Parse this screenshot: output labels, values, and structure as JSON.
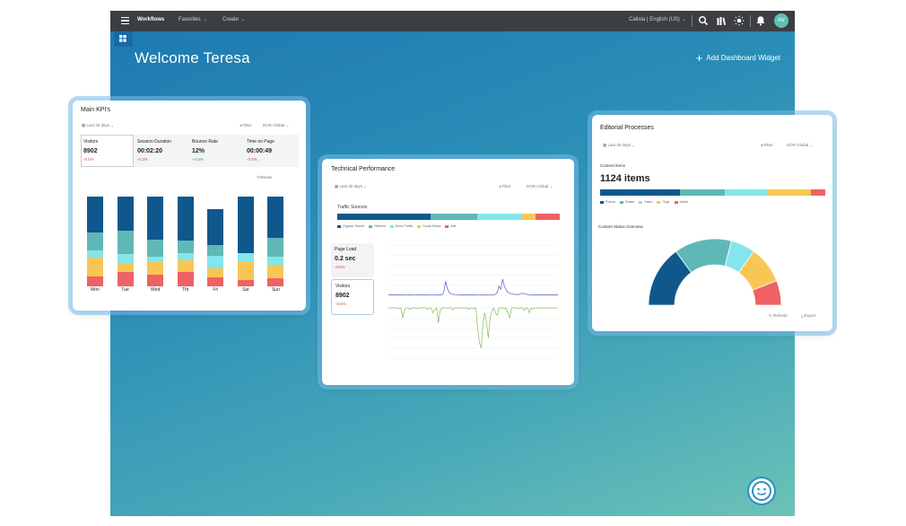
{
  "topbar": {
    "workflows": "Workflows",
    "favorites": "Favorites",
    "create": "Create",
    "locale": "Calista | English (US)",
    "avatar_initials": "AV"
  },
  "header": {
    "welcome": "Welcome Teresa",
    "add_widget": "Add Dashboard Widget"
  },
  "kpi_card": {
    "title": "Main KPI's",
    "range": "Last 30 days",
    "filter": "Filter",
    "scope": "DOR Global",
    "metrics": [
      {
        "label": "Visitors",
        "value": "8902",
        "delta": "-0.5%"
      },
      {
        "label": "Session Duration",
        "value": "00:02:20",
        "delta": "-0.3%"
      },
      {
        "label": "Bounce Rate",
        "value": "12%",
        "delta": "+4.5%"
      },
      {
        "label": "Time on Page",
        "value": "00:00:49",
        "delta": "-0.5%"
      }
    ],
    "shown": "7/Weeks",
    "days": [
      "Mon",
      "Tue",
      "Wed",
      "Thr",
      "Fri",
      "Sat",
      "Sun"
    ]
  },
  "tech_card": {
    "title": "Technical Performance",
    "range": "Last 30 days",
    "filter": "Filter",
    "scope": "DOR Global",
    "traffic_title": "Traffic Sources",
    "traffic_legend": [
      "Organic Search",
      "Referral",
      "Direct Traffic",
      "Social Media",
      "Ads"
    ],
    "page_load_label": "Page Load",
    "page_load_value": "0.2 sec",
    "page_load_delta": "-0.5%",
    "visitors_label": "Visitors",
    "visitors_value": "8902",
    "visitors_delta": "-0.5%"
  },
  "editorial_card": {
    "title": "Editorial Processes",
    "range": "Last 30 days",
    "filter": "Filter",
    "scope": "DOR Global",
    "content_label": "Content Items",
    "content_value": "1124 items",
    "legend": [
      "Picture",
      "Teaser",
      "Video",
      "Page",
      "Article"
    ],
    "status_title": "Content Status Overview",
    "refresh": "Refresh",
    "export": "Export"
  },
  "colors": {
    "c1": "#10588c",
    "c2": "#5fb8b6",
    "c3": "#84e6ea",
    "c4": "#f7c655",
    "c5": "#ef6165",
    "accent": "#1d78b0"
  },
  "chart_data": [
    {
      "type": "bar",
      "categories": [
        "Mon",
        "Tue",
        "Wed",
        "Thr",
        "Fri",
        "Sat",
        "Sun"
      ],
      "series": [
        {
          "values": [
            42,
            38,
            52,
            50,
            40,
            72,
            50
          ]
        },
        {
          "values": [
            22,
            26,
            20,
            14,
            12,
            0,
            22
          ]
        },
        {
          "values": [
            8,
            10,
            6,
            8,
            14,
            10,
            10
          ]
        },
        {
          "values": [
            22,
            10,
            16,
            14,
            10,
            24,
            16
          ]
        },
        {
          "values": [
            12,
            16,
            14,
            16,
            10,
            8,
            10
          ]
        }
      ]
    },
    {
      "type": "bar",
      "categories": [
        "Organic Search",
        "Referral",
        "Direct Traffic",
        "Social Media",
        "Ads"
      ],
      "values": [
        42,
        21,
        20,
        6,
        11
      ]
    },
    {
      "type": "line",
      "ylim": [
        0,
        500
      ],
      "values": [
        5,
        5,
        6,
        5,
        5,
        6,
        5,
        5,
        5,
        6,
        6,
        5,
        5,
        5,
        6,
        6,
        5,
        5,
        5,
        5,
        5,
        6,
        5,
        5,
        6,
        6,
        5,
        5,
        6,
        5,
        6,
        30,
        140,
        70,
        30,
        15,
        12,
        8,
        7,
        6,
        6,
        5,
        5,
        5,
        6,
        5,
        5,
        5,
        5,
        5,
        6,
        6,
        5,
        5,
        5,
        5,
        6,
        6,
        5,
        6,
        10,
        30,
        90,
        60,
        160,
        90,
        55,
        30,
        20,
        15,
        12,
        10,
        8,
        9,
        14,
        20,
        18,
        12,
        8,
        6,
        5,
        5,
        5,
        5,
        6,
        5,
        5,
        5,
        6,
        5,
        5,
        5,
        5,
        6,
        5,
        5
      ]
    },
    {
      "type": "line",
      "ylim": [
        -10,
        0
      ],
      "values": [
        0,
        0,
        0,
        0,
        0,
        0,
        -0.2,
        0,
        -2,
        -0.5,
        0,
        0,
        -0.3,
        0,
        0,
        0,
        -0.2,
        0,
        0,
        0,
        0,
        0,
        -0.3,
        0,
        0,
        -1,
        -0.4,
        0,
        -3,
        -0.5,
        0,
        0,
        0,
        0,
        0,
        0,
        -0.4,
        0,
        0,
        0,
        0,
        0,
        0,
        0,
        0,
        -0.3,
        0,
        0,
        -0.2,
        0,
        -4,
        -7,
        -8,
        -3,
        -1,
        -3,
        -6,
        -2,
        -0.5,
        0,
        -1,
        -1.5,
        0,
        0,
        0,
        -0.2,
        0,
        -1,
        -2,
        0,
        0,
        0,
        0,
        -0.2,
        0,
        0,
        -0.5,
        0,
        0,
        -1,
        0,
        -0.3,
        0,
        0,
        0,
        0,
        0,
        0,
        0,
        0,
        0,
        0,
        0,
        0,
        0,
        0
      ]
    },
    {
      "type": "bar",
      "categories": [
        "Picture",
        "Teaser",
        "Video",
        "Page",
        "Article"
      ],
      "values": [
        34,
        19,
        18,
        19,
        6
      ]
    },
    {
      "type": "pie",
      "categories": [
        "c1",
        "c2",
        "c3",
        "c4",
        "c5"
      ],
      "values": [
        30,
        28,
        12,
        18,
        12
      ]
    }
  ]
}
